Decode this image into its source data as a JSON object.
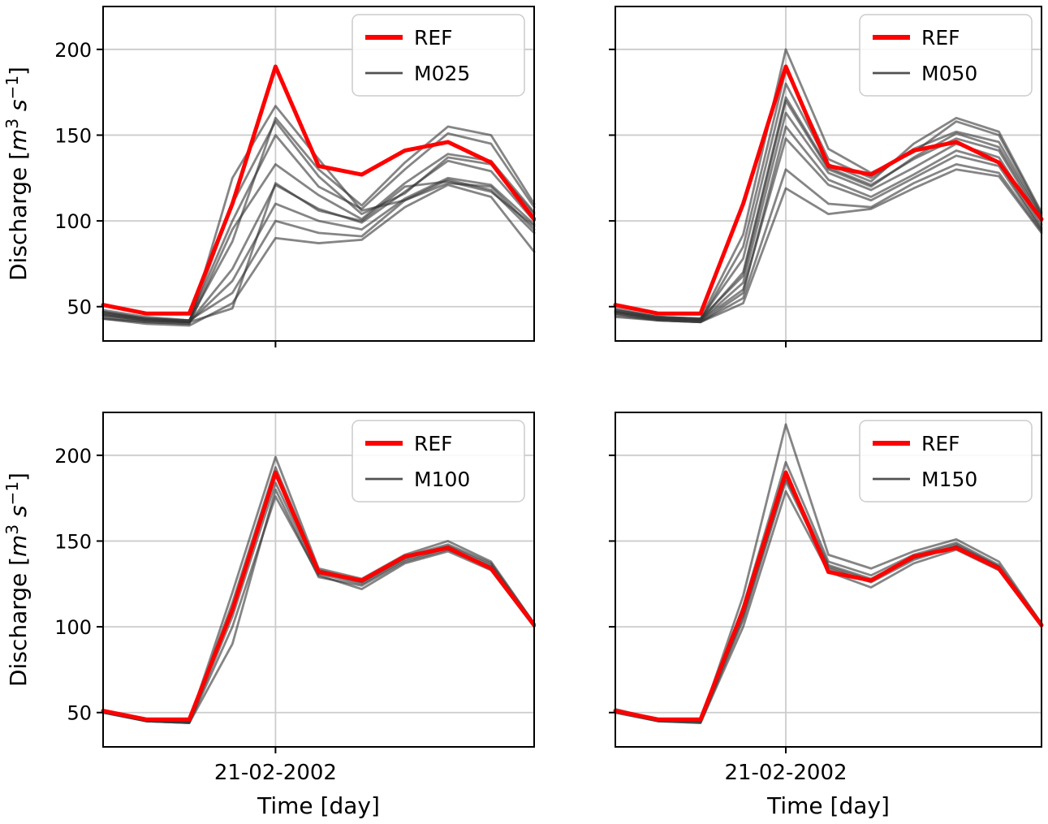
{
  "figure": {
    "ylabel_text": "Discharge [m³ s⁻¹]",
    "ylabel_parts": [
      {
        "t": "Discharge ["
      },
      {
        "t": "m",
        "i": 1
      },
      {
        "t": "3",
        "sup": 1
      },
      {
        "t": " "
      },
      {
        "t": "s",
        "i": 1
      },
      {
        "t": "−1",
        "sup": 1
      },
      {
        "t": "]"
      }
    ],
    "xlabel": "Time [day]",
    "xtick_label": "21-02-2002",
    "colors": {
      "ref": "#ff0000",
      "member": "#333333",
      "grid": "#cccccc",
      "axis": "#000000",
      "legend_border": "#cccccc"
    }
  },
  "chart_data": [
    {
      "type": "line",
      "panel": "top-left",
      "legend": [
        "REF",
        "M025"
      ],
      "x": [
        0,
        1,
        2,
        3,
        4,
        5,
        6,
        7,
        8,
        9,
        10
      ],
      "ylim": [
        30,
        225
      ],
      "yticks": [
        50,
        100,
        150,
        200
      ],
      "xtick_index": 4,
      "xtick_label": "21-02-2002",
      "xlabel": "Time [day]",
      "ylabel": "Discharge [m³ s⁻¹]",
      "series": [
        {
          "name": "REF",
          "role": "ref",
          "values": [
            51,
            46,
            46,
            110,
            190,
            132,
            127,
            141,
            146,
            134,
            101
          ]
        },
        {
          "name": "M025",
          "role": "ensemble",
          "runs": [
            [
              44,
              41,
              40,
              125,
              167,
              136,
              106,
              112,
              124,
              118,
              93
            ],
            [
              45,
              42,
              41,
              110,
              158,
              126,
              104,
              116,
              137,
              133,
              104
            ],
            [
              43,
              41,
              40,
              95,
              133,
              115,
              101,
              122,
              139,
              135,
              105
            ],
            [
              46,
              42,
              41,
              72,
              121,
              107,
              99,
              117,
              135,
              129,
              100
            ],
            [
              47,
              43,
              42,
              58,
              100,
              93,
              91,
              112,
              122,
              120,
              95
            ],
            [
              43,
              40,
              39,
              52,
              90,
              87,
              89,
              108,
              121,
              114,
              82
            ],
            [
              48,
              44,
              42,
              100,
              150,
              120,
              107,
              130,
              151,
              145,
              108
            ],
            [
              46,
              43,
              42,
              88,
              160,
              130,
              109,
              134,
              155,
              150,
              110
            ],
            [
              47,
              43,
              41,
              49,
              122,
              106,
              100,
              120,
              123,
              117,
              97
            ],
            [
              45,
              42,
              41,
              65,
              110,
              100,
              95,
              113,
              125,
              121,
              98
            ]
          ]
        }
      ]
    },
    {
      "type": "line",
      "panel": "top-right",
      "legend": [
        "REF",
        "M050"
      ],
      "x": [
        0,
        1,
        2,
        3,
        4,
        5,
        6,
        7,
        8,
        9,
        10
      ],
      "ylim": [
        30,
        225
      ],
      "yticks": [
        50,
        100,
        150,
        200
      ],
      "xtick_index": 4,
      "xtick_label": "21-02-2002",
      "xlabel": "Time [day]",
      "ylabel": "Discharge [m³ s⁻¹]",
      "series": [
        {
          "name": "REF",
          "role": "ref",
          "values": [
            51,
            46,
            46,
            110,
            190,
            132,
            127,
            141,
            146,
            134,
            101
          ]
        },
        {
          "name": "M050",
          "role": "ensemble",
          "runs": [
            [
              48,
              44,
              43,
              92,
              200,
              142,
              128,
              140,
              158,
              150,
              104
            ],
            [
              47,
              43,
              42,
              85,
              188,
              136,
              125,
              142,
              152,
              146,
              103
            ],
            [
              49,
              44,
              43,
              78,
              180,
              133,
              123,
              145,
              160,
              152,
              105
            ],
            [
              46,
              43,
              42,
              70,
              172,
              131,
              121,
              136,
              148,
              141,
              100
            ],
            [
              47,
              43,
              42,
              64,
              163,
              128,
              118,
              131,
              145,
              137,
              98
            ],
            [
              45,
              42,
              41,
              58,
              155,
              124,
              114,
              127,
              141,
              134,
              96
            ],
            [
              44,
              42,
              41,
              52,
              119,
              104,
              107,
              119,
              130,
              126,
              93
            ],
            [
              48,
              44,
              43,
              68,
              170,
              130,
              120,
              137,
              151,
              143,
              102
            ],
            [
              47,
              43,
              42,
              60,
              148,
              121,
              112,
              125,
              138,
              132,
              95
            ],
            [
              46,
              42,
              41,
              55,
              130,
              110,
              108,
              122,
              133,
              128,
              94
            ]
          ]
        }
      ]
    },
    {
      "type": "line",
      "panel": "bottom-left",
      "legend": [
        "REF",
        "M100"
      ],
      "x": [
        0,
        1,
        2,
        3,
        4,
        5,
        6,
        7,
        8,
        9,
        10
      ],
      "ylim": [
        30,
        225
      ],
      "yticks": [
        50,
        100,
        150,
        200
      ],
      "xtick_index": 4,
      "xtick_label": "21-02-2002",
      "xlabel": "Time [day]",
      "ylabel": "Discharge [m³ s⁻¹]",
      "series": [
        {
          "name": "REF",
          "role": "ref",
          "values": [
            51,
            46,
            46,
            110,
            190,
            132,
            127,
            141,
            146,
            134,
            101
          ]
        },
        {
          "name": "M100",
          "role": "ensemble",
          "runs": [
            [
              51,
              46,
              45,
              120,
              199,
              134,
              128,
              142,
              150,
              138,
              102
            ],
            [
              51,
              46,
              45,
              114,
              193,
              133,
              127,
              141,
              148,
              137,
              102
            ],
            [
              51,
              45,
              45,
              110,
              189,
              132,
              126,
              140,
              147,
              136,
              101
            ],
            [
              50,
              45,
              44,
              106,
              184,
              131,
              125,
              139,
              146,
              135,
              101
            ],
            [
              50,
              45,
              44,
              100,
              176,
              130,
              122,
              137,
              144,
              133,
              100
            ],
            [
              50,
              45,
              44,
              90,
              180,
              129,
              124,
              138,
              145,
              134,
              101
            ]
          ]
        }
      ]
    },
    {
      "type": "line",
      "panel": "bottom-right",
      "legend": [
        "REF",
        "M150"
      ],
      "x": [
        0,
        1,
        2,
        3,
        4,
        5,
        6,
        7,
        8,
        9,
        10
      ],
      "ylim": [
        30,
        225
      ],
      "yticks": [
        50,
        100,
        150,
        200
      ],
      "xtick_index": 4,
      "xtick_label": "21-02-2002",
      "xlabel": "Time [day]",
      "ylabel": "Discharge [m³ s⁻¹]",
      "series": [
        {
          "name": "REF",
          "role": "ref",
          "values": [
            51,
            46,
            46,
            110,
            190,
            132,
            127,
            141,
            146,
            134,
            101
          ]
        },
        {
          "name": "M150",
          "role": "ensemble",
          "runs": [
            [
              52,
              46,
              45,
              118,
              218,
              142,
              134,
              144,
              151,
              138,
              102
            ],
            [
              51,
              46,
              45,
              112,
              196,
              138,
              130,
              142,
              149,
              136,
              102
            ],
            [
              51,
              45,
              45,
              108,
              190,
              136,
              128,
              141,
              148,
              135,
              101
            ],
            [
              50,
              45,
              44,
              104,
              185,
              134,
              126,
              139,
              147,
              134,
              101
            ],
            [
              50,
              45,
              44,
              100,
              179,
              132,
              123,
              137,
              145,
              133,
              100
            ],
            [
              51,
              46,
              45,
              106,
              187,
              135,
              127,
              140,
              147,
              135,
              101
            ]
          ]
        }
      ]
    }
  ]
}
